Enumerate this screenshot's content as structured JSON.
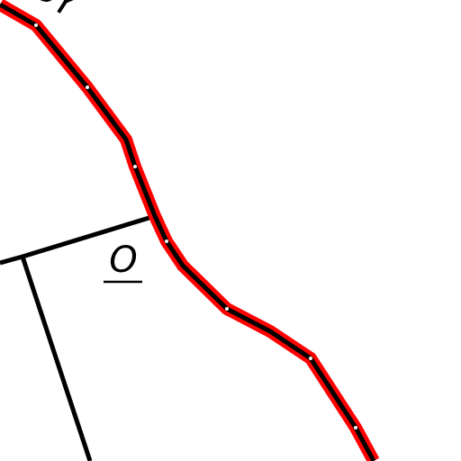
{
  "labels": {
    "road_name": "DY",
    "parcel_label": "O"
  }
}
